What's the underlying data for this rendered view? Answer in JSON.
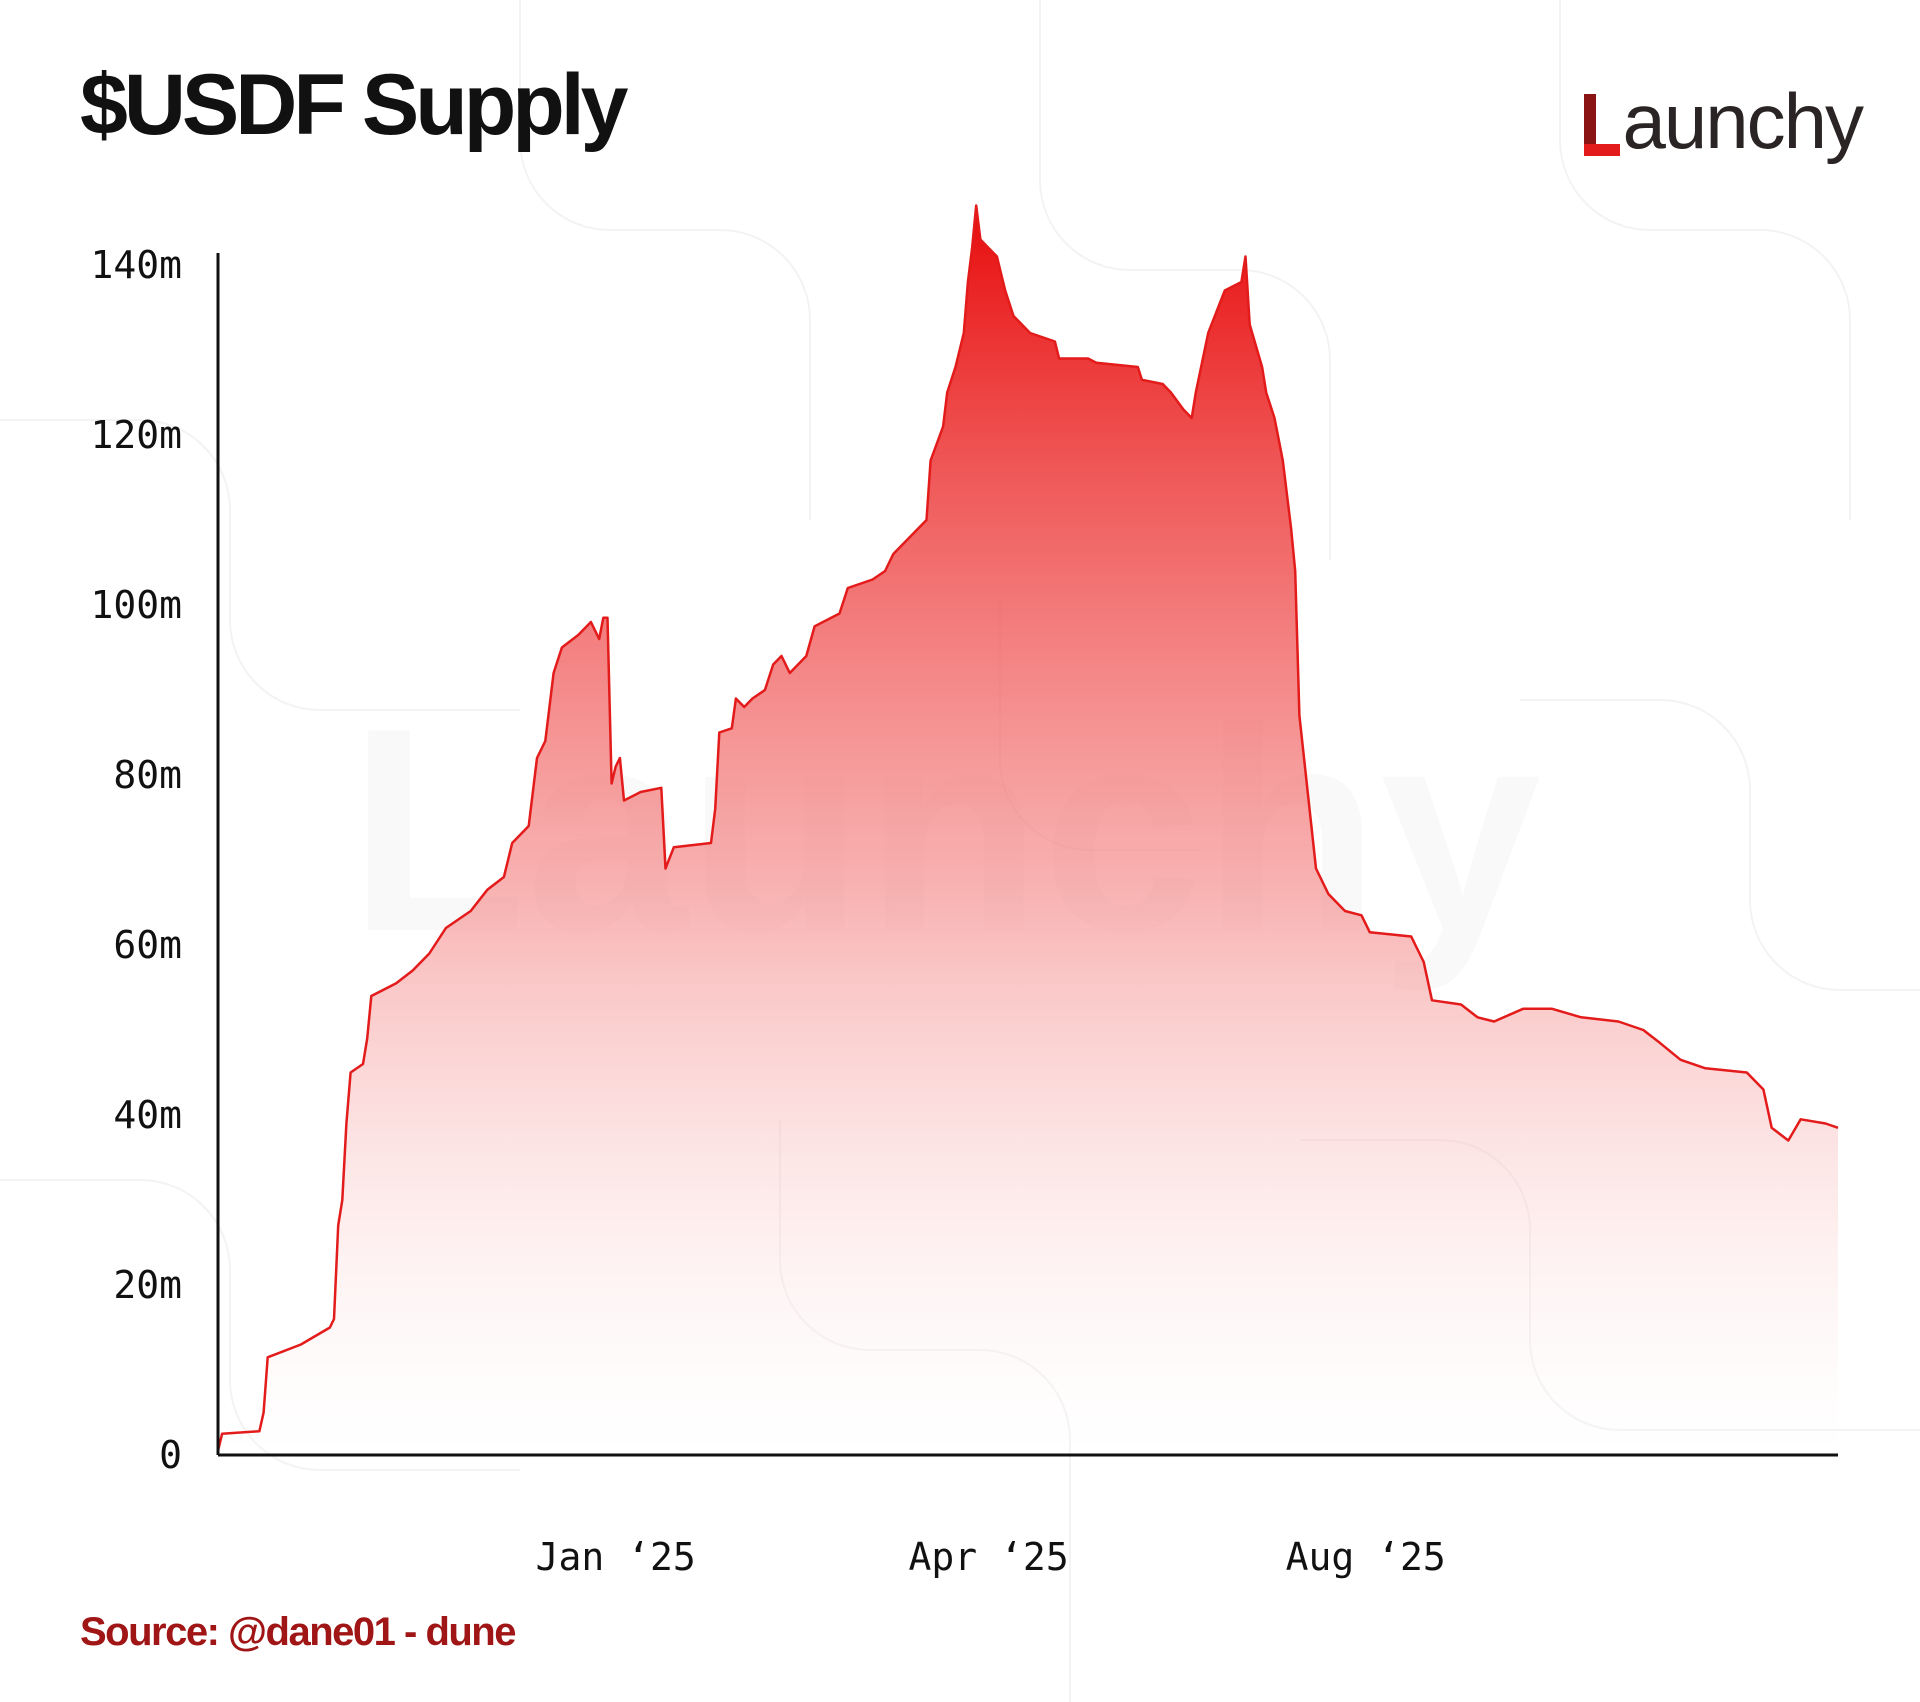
{
  "header": {
    "title": "$USDF Supply",
    "logo_text": "aunchy",
    "logo_icon": "launchy-L-icon",
    "watermark_text": "Launchy"
  },
  "footer": {
    "source": "Source: @dane01 - dune"
  },
  "colors": {
    "line": "#e31b1b",
    "fill_top": "#e80c0c",
    "fill_bottom": "#ffffff",
    "axis": "#111111",
    "title": "#111111",
    "source": "#a01515",
    "logo_accent": "#e31b1b",
    "logo_dark": "#8a1414"
  },
  "chart_data": {
    "type": "area",
    "title": "",
    "xlabel": "",
    "ylabel": "",
    "grid": false,
    "legend": "none",
    "y_unit": "m",
    "ylim": [
      0,
      150
    ],
    "yticks": [
      0,
      20,
      40,
      60,
      80,
      100,
      120,
      140
    ],
    "ytick_labels": [
      "0",
      "20m",
      "40m",
      "60m",
      "80m",
      "100m",
      "120m",
      "140m"
    ],
    "x_start": "2024-10-10",
    "x_end": "2025-11-05",
    "xtick_labels": [
      {
        "label": "Jan ‘25",
        "date": "2025-01-14"
      },
      {
        "label": "Apr ‘25",
        "date": "2025-04-14"
      },
      {
        "label": "Aug ‘25",
        "date": "2025-07-14"
      }
    ],
    "series": [
      {
        "name": "",
        "points": [
          [
            "2024-10-10",
            0.5
          ],
          [
            "2024-10-11",
            2.5
          ],
          [
            "2024-10-20",
            2.8
          ],
          [
            "2024-10-21",
            5
          ],
          [
            "2024-10-22",
            11.5
          ],
          [
            "2024-10-30",
            13
          ],
          [
            "2024-11-06",
            15
          ],
          [
            "2024-11-07",
            16
          ],
          [
            "2024-11-08",
            27
          ],
          [
            "2024-11-09",
            30
          ],
          [
            "2024-11-10",
            39
          ],
          [
            "2024-11-11",
            45
          ],
          [
            "2024-11-14",
            46
          ],
          [
            "2024-11-15",
            49
          ],
          [
            "2024-11-16",
            54
          ],
          [
            "2024-11-22",
            55.5
          ],
          [
            "2024-11-26",
            57
          ],
          [
            "2024-11-30",
            59
          ],
          [
            "2024-12-04",
            62
          ],
          [
            "2024-12-10",
            64
          ],
          [
            "2024-12-14",
            66.5
          ],
          [
            "2024-12-18",
            68
          ],
          [
            "2024-12-20",
            72
          ],
          [
            "2024-12-24",
            74
          ],
          [
            "2024-12-26",
            82
          ],
          [
            "2024-12-28",
            84
          ],
          [
            "2024-12-30",
            92
          ],
          [
            "2025-01-01",
            95
          ],
          [
            "2025-01-05",
            96.5
          ],
          [
            "2025-01-08",
            98
          ],
          [
            "2025-01-10",
            96
          ],
          [
            "2025-01-11",
            98.5
          ],
          [
            "2025-01-12",
            98.5
          ],
          [
            "2025-01-13",
            79
          ],
          [
            "2025-01-14",
            81
          ],
          [
            "2025-01-15",
            82
          ],
          [
            "2025-01-16",
            77
          ],
          [
            "2025-01-20",
            78
          ],
          [
            "2025-01-25",
            78.5
          ],
          [
            "2025-01-26",
            69
          ],
          [
            "2025-01-28",
            71.5
          ],
          [
            "2025-02-06",
            72
          ],
          [
            "2025-02-07",
            76
          ],
          [
            "2025-02-08",
            85
          ],
          [
            "2025-02-11",
            85.5
          ],
          [
            "2025-02-12",
            89
          ],
          [
            "2025-02-14",
            88
          ],
          [
            "2025-02-16",
            89
          ],
          [
            "2025-02-19",
            90
          ],
          [
            "2025-02-21",
            93
          ],
          [
            "2025-02-23",
            94
          ],
          [
            "2025-02-25",
            92
          ],
          [
            "2025-03-01",
            94
          ],
          [
            "2025-03-03",
            97.5
          ],
          [
            "2025-03-09",
            99
          ],
          [
            "2025-03-11",
            102
          ],
          [
            "2025-03-17",
            103
          ],
          [
            "2025-03-20",
            104
          ],
          [
            "2025-03-22",
            106
          ],
          [
            "2025-03-26",
            108
          ],
          [
            "2025-03-30",
            110
          ],
          [
            "2025-03-31",
            117
          ],
          [
            "2025-04-03",
            121
          ],
          [
            "2025-04-04",
            125
          ],
          [
            "2025-04-06",
            128
          ],
          [
            "2025-04-08",
            132
          ],
          [
            "2025-04-09",
            138
          ],
          [
            "2025-04-10",
            142
          ],
          [
            "2025-04-11",
            147
          ],
          [
            "2025-04-12",
            143
          ],
          [
            "2025-04-14",
            142
          ],
          [
            "2025-04-16",
            141
          ],
          [
            "2025-04-18",
            137
          ],
          [
            "2025-04-20",
            134
          ],
          [
            "2025-04-24",
            132
          ],
          [
            "2025-04-30",
            131
          ],
          [
            "2025-05-01",
            129
          ],
          [
            "2025-05-08",
            129
          ],
          [
            "2025-05-10",
            128.5
          ],
          [
            "2025-05-20",
            128
          ],
          [
            "2025-05-21",
            126.5
          ],
          [
            "2025-05-26",
            126
          ],
          [
            "2025-05-28",
            125
          ],
          [
            "2025-05-31",
            123
          ],
          [
            "2025-06-02",
            122
          ],
          [
            "2025-06-03",
            125
          ],
          [
            "2025-06-06",
            132
          ],
          [
            "2025-06-10",
            137
          ],
          [
            "2025-06-14",
            138
          ],
          [
            "2025-06-15",
            141
          ],
          [
            "2025-06-16",
            133
          ],
          [
            "2025-06-19",
            128
          ],
          [
            "2025-06-20",
            125
          ],
          [
            "2025-06-22",
            122
          ],
          [
            "2025-06-24",
            117
          ],
          [
            "2025-06-26",
            109
          ],
          [
            "2025-06-27",
            104
          ],
          [
            "2025-06-28",
            87
          ],
          [
            "2025-06-30",
            78
          ],
          [
            "2025-07-02",
            69
          ],
          [
            "2025-07-05",
            66
          ],
          [
            "2025-07-09",
            64
          ],
          [
            "2025-07-13",
            63.5
          ],
          [
            "2025-07-15",
            61.5
          ],
          [
            "2025-07-25",
            61
          ],
          [
            "2025-07-28",
            58
          ],
          [
            "2025-07-30",
            53.5
          ],
          [
            "2025-08-06",
            53
          ],
          [
            "2025-08-10",
            51.5
          ],
          [
            "2025-08-14",
            51
          ],
          [
            "2025-08-21",
            52.5
          ],
          [
            "2025-08-28",
            52.5
          ],
          [
            "2025-09-04",
            51.5
          ],
          [
            "2025-09-13",
            51
          ],
          [
            "2025-09-19",
            50
          ],
          [
            "2025-09-23",
            48.5
          ],
          [
            "2025-09-28",
            46.5
          ],
          [
            "2025-10-04",
            45.5
          ],
          [
            "2025-10-14",
            45
          ],
          [
            "2025-10-18",
            43
          ],
          [
            "2025-10-20",
            38.5
          ],
          [
            "2025-10-24",
            37
          ],
          [
            "2025-10-27",
            39.5
          ],
          [
            "2025-11-02",
            39
          ],
          [
            "2025-11-05",
            38.5
          ]
        ]
      }
    ]
  }
}
